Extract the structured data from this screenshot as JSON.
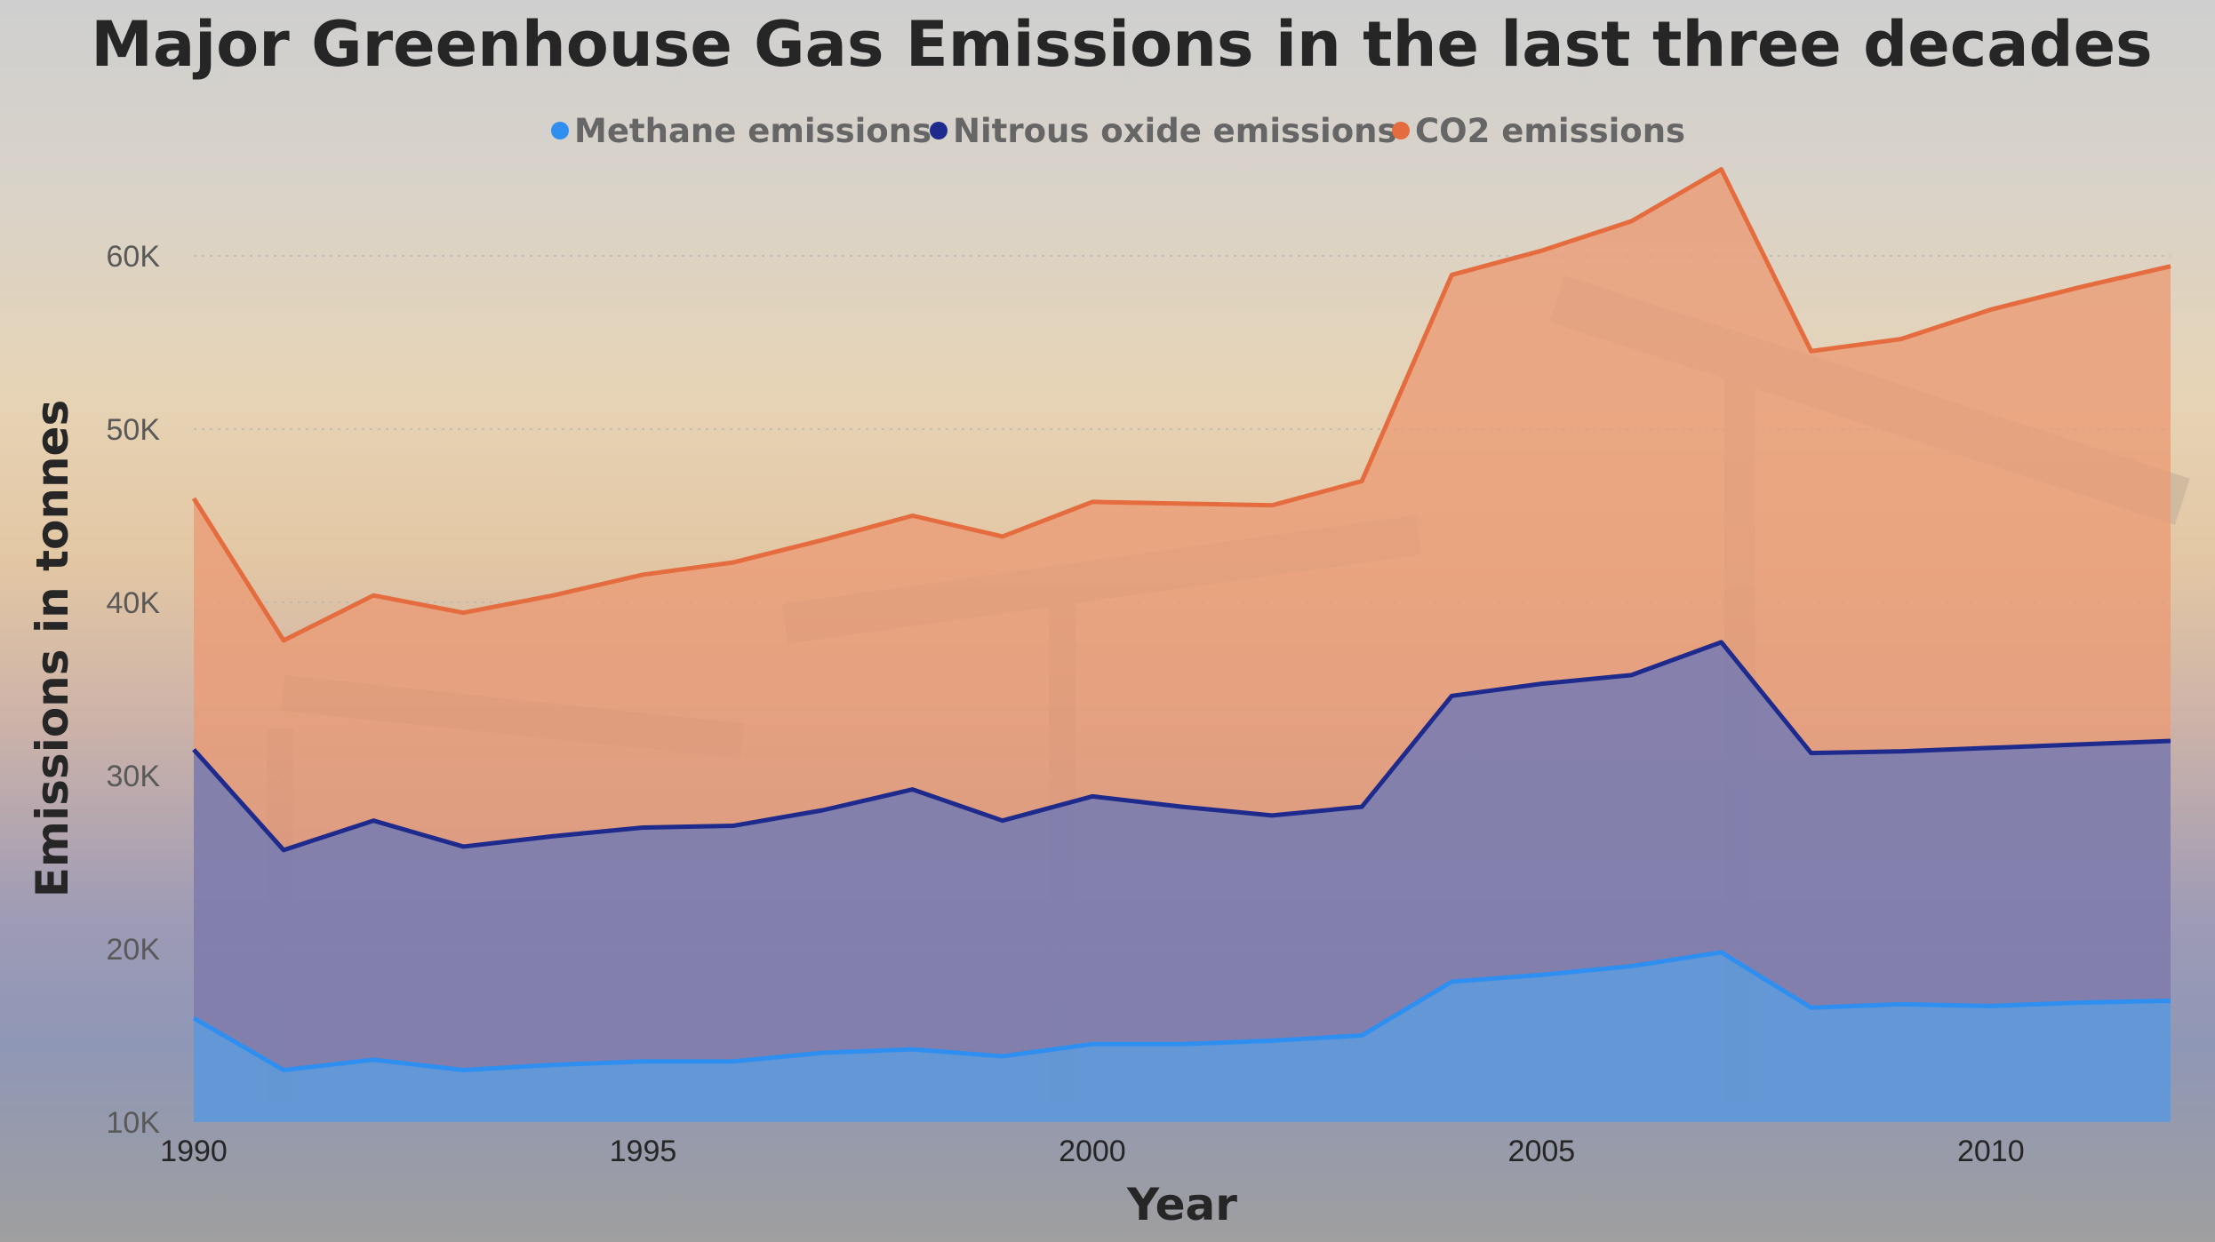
{
  "chart_data": {
    "type": "area",
    "title": "Major Greenhouse Gas Emissions in the last three decades",
    "xlabel": "Year",
    "ylabel": "Emissions in tonnes",
    "x": [
      1990,
      1991,
      1992,
      1993,
      1994,
      1995,
      1996,
      1997,
      1998,
      1999,
      2000,
      2001,
      2002,
      2003,
      2004,
      2005,
      2006,
      2007,
      2008,
      2009,
      2010,
      2011,
      2012
    ],
    "xticks": [
      "1990",
      "1995",
      "2000",
      "2005",
      "2010"
    ],
    "yticks": [
      "10K",
      "20K",
      "30K",
      "40K",
      "50K",
      "60K"
    ],
    "ylim": [
      10000,
      65000
    ],
    "grid": true,
    "legend_position": "top-center",
    "series": [
      {
        "name": "Methane emissions",
        "color": "#2e8ff0",
        "fill": "#5b9fe0",
        "values": [
          16000,
          13000,
          13600,
          13000,
          13300,
          13500,
          13500,
          14000,
          14200,
          13800,
          14500,
          14500,
          14700,
          15000,
          18100,
          18500,
          19000,
          19800,
          16600,
          16800,
          16700,
          16900,
          17000
        ]
      },
      {
        "name": "Nitrous oxide emissions",
        "color": "#1e2a8c",
        "fill": "#6a78b8",
        "values": [
          31500,
          25700,
          27400,
          25900,
          26500,
          27000,
          27100,
          28000,
          29200,
          27400,
          28800,
          28200,
          27700,
          28200,
          34600,
          35300,
          35800,
          37700,
          31300,
          31400,
          31600,
          31800,
          32000
        ]
      },
      {
        "name": "CO2 emissions",
        "color": "#e46c3e",
        "fill": "#eb9b74",
        "values": [
          46000,
          37800,
          40400,
          39400,
          40400,
          41600,
          42300,
          43600,
          45000,
          43800,
          45800,
          45700,
          45600,
          47000,
          58900,
          60300,
          62000,
          65000,
          54500,
          55200,
          56900,
          58200,
          59400
        ]
      }
    ]
  }
}
